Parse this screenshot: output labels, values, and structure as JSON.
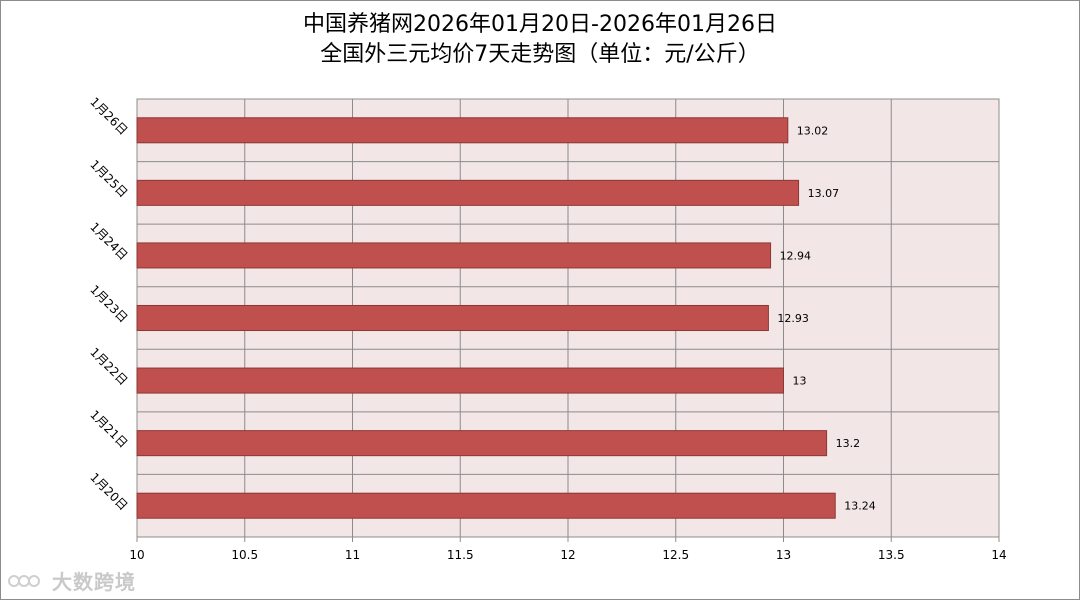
{
  "title": {
    "line1": "中国养猪网2026年01月20日-2026年01月26日",
    "line2": "全国外三元均价7天走势图（单位：元/公斤）"
  },
  "watermark": {
    "text": "大数跨境"
  },
  "colors": {
    "bar": "#c0504d",
    "bar_border": "#8c3836",
    "plot_bg": "#f2e6e6",
    "grid": "#8c8c8c"
  },
  "chart_data": {
    "type": "bar",
    "orientation": "horizontal",
    "categories": [
      "1月26日",
      "1月25日",
      "1月24日",
      "1月23日",
      "1月22日",
      "1月21日",
      "1月20日"
    ],
    "values": [
      13.02,
      13.07,
      12.94,
      12.93,
      13,
      13.2,
      13.24
    ],
    "value_labels": [
      "13.02",
      "13.07",
      "12.94",
      "12.93",
      "13",
      "13.2",
      "13.24"
    ],
    "xlim": [
      10,
      14
    ],
    "xticks": [
      "10",
      "10.5",
      "11",
      "11.5",
      "12",
      "12.5",
      "13",
      "13.5",
      "14"
    ],
    "grid": true,
    "legend": "none"
  }
}
